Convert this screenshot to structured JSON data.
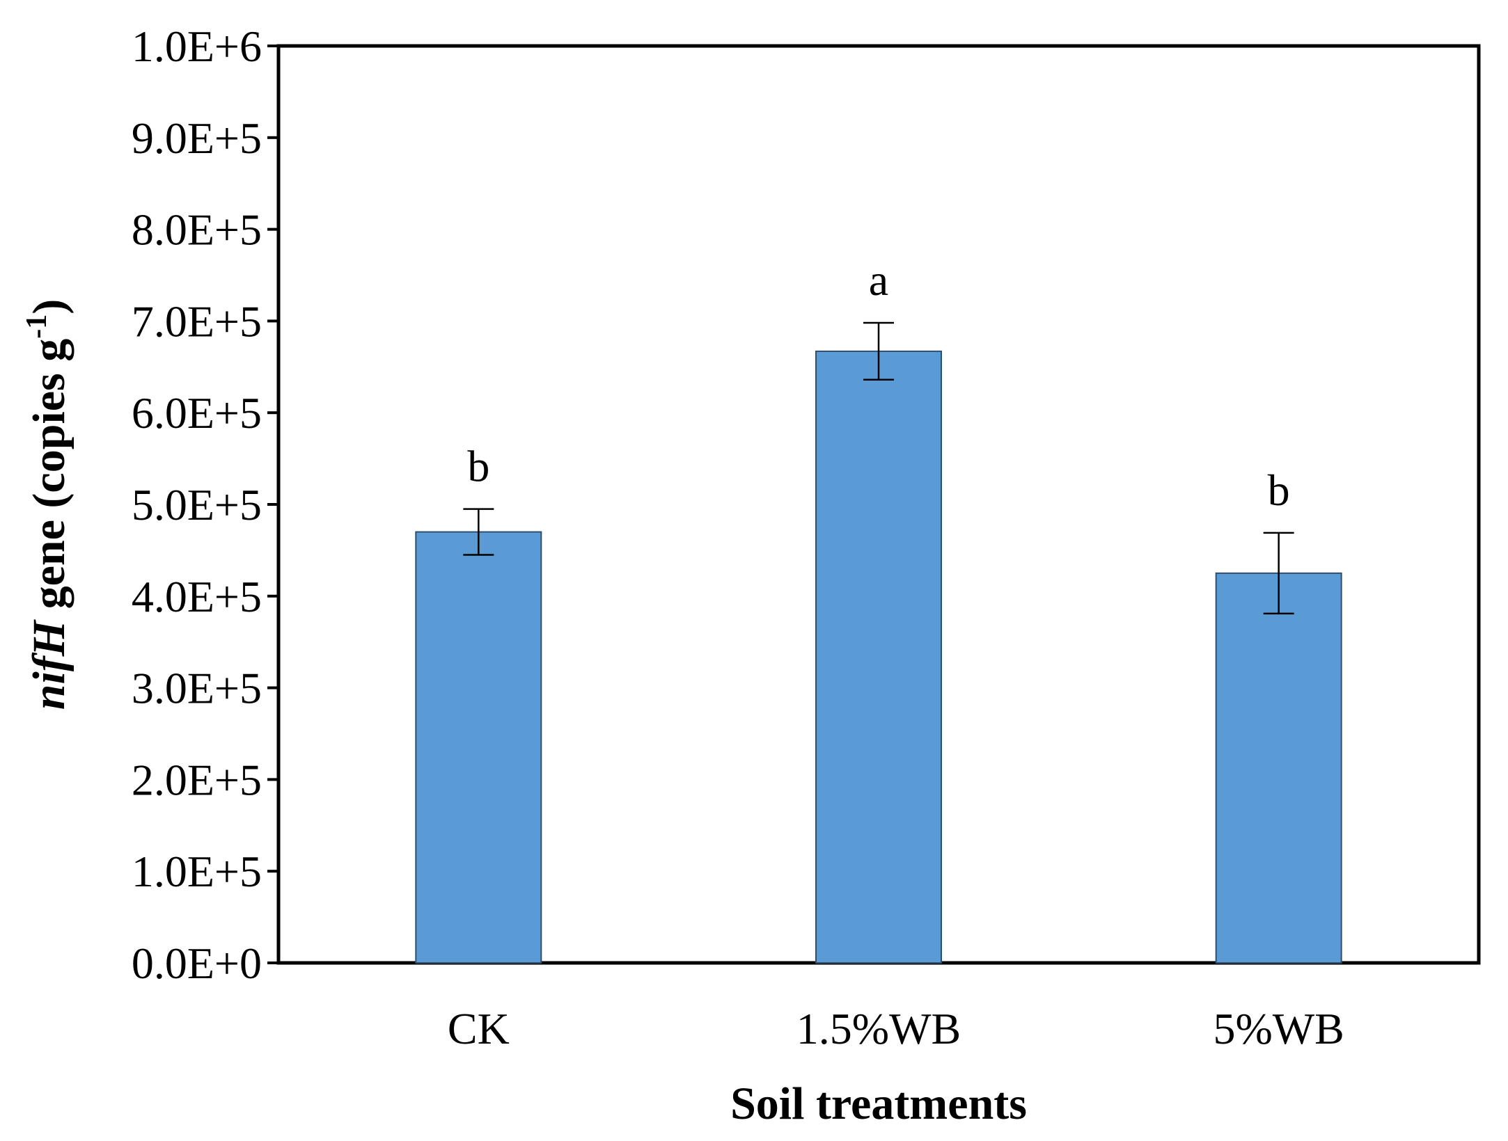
{
  "chart_data": {
    "type": "bar",
    "categories": [
      "CK",
      "1.5%WB",
      "5%WB"
    ],
    "values": [
      470000,
      667000,
      425000
    ],
    "errors": [
      25000,
      31000,
      44000
    ],
    "significance_letters": [
      "b",
      "a",
      "b"
    ],
    "title": "",
    "xlabel": "Soil treatments",
    "ylabel": {
      "italic": "nifH",
      "main": " gene (copies g",
      "superscript": "-1",
      "close": ")"
    },
    "ylim": [
      0,
      1000000
    ],
    "yticks": [
      0,
      100000,
      200000,
      300000,
      400000,
      500000,
      600000,
      700000,
      800000,
      900000,
      1000000
    ],
    "ytick_labels": [
      "0.0E+0",
      "1.0E+5",
      "2.0E+5",
      "3.0E+5",
      "4.0E+5",
      "5.0E+5",
      "6.0E+5",
      "7.0E+5",
      "8.0E+5",
      "9.0E+5",
      "1.0E+6"
    ],
    "grid": false,
    "legend": "none",
    "colors": {
      "bar_fill": "#5b9bd5",
      "bar_stroke": "#2f4f6f",
      "axis": "#000000"
    }
  }
}
